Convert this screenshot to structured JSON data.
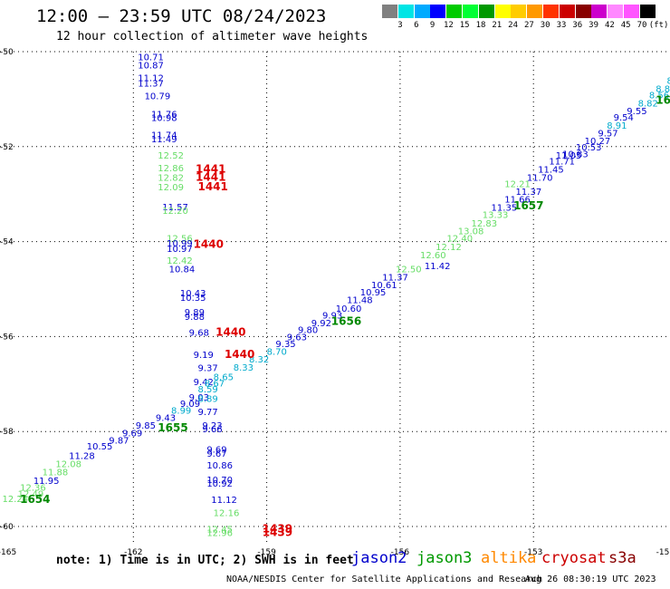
{
  "header": {
    "title": "12:00 — 23:59 UTC 08/24/2023",
    "subtitle": "12 hour collection of altimeter wave heights"
  },
  "colorbar": {
    "colors": [
      "#808080",
      "#00e5e5",
      "#00aaff",
      "#0000ff",
      "#00cc00",
      "#00ff33",
      "#009900",
      "#ffff00",
      "#ffcc00",
      "#ff9900",
      "#ff3300",
      "#cc0000",
      "#880000",
      "#cc00cc",
      "#ff88ff",
      "#ff55ff",
      "#000000"
    ],
    "labels": [
      "3",
      "6",
      "9",
      "12",
      "15",
      "18",
      "21",
      "24",
      "27",
      "30",
      "33",
      "36",
      "39",
      "42",
      "45",
      "70",
      "(ft)"
    ]
  },
  "footer": {
    "note": "note: 1) Time is in UTC; 2) SWH is in feet",
    "credit": "NOAA/NESDIS Center for Satellite Applications and Research",
    "timestamp": "Aug 26 08:30:19 UTC 2023"
  },
  "legend": [
    {
      "name": "jason2",
      "color": "#0000cc"
    },
    {
      "name": "jason3",
      "color": "#009900"
    },
    {
      "name": "altika",
      "color": "#ff8800"
    },
    {
      "name": "cryosat",
      "color": "#cc0000"
    },
    {
      "name": "s3a",
      "color": "#880000"
    }
  ],
  "map": {
    "lon_ticks": [
      "-165",
      "-162",
      "-159",
      "-156",
      "-153",
      "-15"
    ],
    "lat_ticks": [
      "-50",
      "-52",
      "-54",
      "-56",
      "-58",
      "-60"
    ],
    "lon_range": [
      -165,
      -150
    ],
    "lat_range": [
      -60.2,
      -50
    ],
    "colors": {
      "blue": "#0000cc",
      "light_green": "#66dd66",
      "cyan": "#00aacc",
      "red": "#dd0000",
      "dark_green": "#008800"
    },
    "swh_labels": [
      {
        "text": "10.71",
        "lon": -161.9,
        "lat": -50.18,
        "c": "blue"
      },
      {
        "text": "10.87",
        "lon": -161.9,
        "lat": -50.35,
        "c": "blue"
      },
      {
        "text": "11.12",
        "lon": -161.9,
        "lat": -50.62,
        "c": "blue"
      },
      {
        "text": "11.37",
        "lon": -161.9,
        "lat": -50.73,
        "c": "blue"
      },
      {
        "text": "10.79",
        "lon": -161.75,
        "lat": -51.0,
        "c": "blue"
      },
      {
        "text": "11.76",
        "lon": -161.6,
        "lat": -51.38,
        "c": "blue"
      },
      {
        "text": "10.98",
        "lon": -161.6,
        "lat": -51.46,
        "c": "blue"
      },
      {
        "text": "11.74",
        "lon": -161.6,
        "lat": -51.82,
        "c": "blue"
      },
      {
        "text": "11.49",
        "lon": -161.6,
        "lat": -51.91,
        "c": "blue"
      },
      {
        "text": "12.52",
        "lon": -161.45,
        "lat": -52.25,
        "c": "light_green"
      },
      {
        "text": "12.86",
        "lon": -161.45,
        "lat": -52.52,
        "c": "light_green"
      },
      {
        "text": "12.82",
        "lon": -161.45,
        "lat": -52.72,
        "c": "light_green"
      },
      {
        "text": "12.09",
        "lon": -161.45,
        "lat": -52.92,
        "c": "light_green"
      },
      {
        "text": "11.57",
        "lon": -161.35,
        "lat": -53.34,
        "c": "blue"
      },
      {
        "text": "12.20",
        "lon": -161.35,
        "lat": -53.42,
        "c": "light_green"
      },
      {
        "text": "12.56",
        "lon": -161.25,
        "lat": -54.0,
        "c": "light_green"
      },
      {
        "text": "10.99",
        "lon": -161.25,
        "lat": -54.1,
        "c": "blue"
      },
      {
        "text": "10.97",
        "lon": -161.25,
        "lat": -54.22,
        "c": "blue"
      },
      {
        "text": "12.42",
        "lon": -161.25,
        "lat": -54.47,
        "c": "light_green"
      },
      {
        "text": "10.84",
        "lon": -161.2,
        "lat": -54.65,
        "c": "blue"
      },
      {
        "text": "10.43",
        "lon": -160.95,
        "lat": -55.15,
        "c": "blue"
      },
      {
        "text": "10.35",
        "lon": -160.95,
        "lat": -55.25,
        "c": "blue"
      },
      {
        "text": "9.89",
        "lon": -160.85,
        "lat": -55.55,
        "c": "blue"
      },
      {
        "text": "9.88",
        "lon": -160.85,
        "lat": -55.65,
        "c": "blue"
      },
      {
        "text": "9.68",
        "lon": -160.75,
        "lat": -55.98,
        "c": "blue"
      },
      {
        "text": "9.19",
        "lon": -160.65,
        "lat": -56.45,
        "c": "blue"
      },
      {
        "text": "9.37",
        "lon": -160.55,
        "lat": -56.73,
        "c": "blue"
      },
      {
        "text": "9.42",
        "lon": -160.65,
        "lat": -57.02,
        "c": "blue"
      },
      {
        "text": "8.59",
        "lon": -160.55,
        "lat": -57.18,
        "c": "cyan"
      },
      {
        "text": "9.03",
        "lon": -160.75,
        "lat": -57.35,
        "c": "blue"
      },
      {
        "text": "8.89",
        "lon": -160.55,
        "lat": -57.38,
        "c": "cyan"
      },
      {
        "text": "9.77",
        "lon": -160.55,
        "lat": -57.65,
        "c": "blue"
      },
      {
        "text": "9.09",
        "lon": -160.95,
        "lat": -57.48,
        "c": "blue"
      },
      {
        "text": "8.99",
        "lon": -161.15,
        "lat": -57.62,
        "c": "cyan"
      },
      {
        "text": "9.43",
        "lon": -161.5,
        "lat": -57.78,
        "c": "blue"
      },
      {
        "text": "9.23",
        "lon": -160.45,
        "lat": -57.94,
        "c": "blue"
      },
      {
        "text": "9.66",
        "lon": -160.45,
        "lat": -58.02,
        "c": "blue"
      },
      {
        "text": "9.85",
        "lon": -161.95,
        "lat": -57.94,
        "c": "blue"
      },
      {
        "text": "9.69",
        "lon": -162.25,
        "lat": -58.1,
        "c": "blue"
      },
      {
        "text": "9.87",
        "lon": -162.55,
        "lat": -58.25,
        "c": "blue"
      },
      {
        "text": "10.55",
        "lon": -163.05,
        "lat": -58.38,
        "c": "blue"
      },
      {
        "text": "11.28",
        "lon": -163.45,
        "lat": -58.58,
        "c": "blue"
      },
      {
        "text": "12.08",
        "lon": -163.75,
        "lat": -58.75,
        "c": "light_green"
      },
      {
        "text": "11.88",
        "lon": -164.05,
        "lat": -58.92,
        "c": "light_green"
      },
      {
        "text": "11.95",
        "lon": -164.25,
        "lat": -59.1,
        "c": "blue"
      },
      {
        "text": "12.36",
        "lon": -164.55,
        "lat": -59.25,
        "c": "light_green"
      },
      {
        "text": "12.49",
        "lon": -164.6,
        "lat": -59.38,
        "c": "light_green"
      },
      {
        "text": "12.24",
        "lon": -164.95,
        "lat": -59.48,
        "c": "light_green"
      },
      {
        "text": "9.69",
        "lon": -160.35,
        "lat": -58.44,
        "c": "blue"
      },
      {
        "text": "9.67",
        "lon": -160.35,
        "lat": -58.53,
        "c": "blue"
      },
      {
        "text": "10.86",
        "lon": -160.35,
        "lat": -58.78,
        "c": "blue"
      },
      {
        "text": "10.70",
        "lon": -160.35,
        "lat": -59.08,
        "c": "blue"
      },
      {
        "text": "10.92",
        "lon": -160.35,
        "lat": -59.16,
        "c": "blue"
      },
      {
        "text": "11.12",
        "lon": -160.25,
        "lat": -59.5,
        "c": "blue"
      },
      {
        "text": "12.16",
        "lon": -160.2,
        "lat": -59.78,
        "c": "light_green"
      },
      {
        "text": "12.45",
        "lon": -160.35,
        "lat": -60.12,
        "c": "light_green"
      },
      {
        "text": "12.96",
        "lon": -160.35,
        "lat": -60.2,
        "c": "light_green"
      },
      {
        "text": "8.32",
        "lon": -159.4,
        "lat": -56.55,
        "c": "cyan"
      },
      {
        "text": "8.33",
        "lon": -159.75,
        "lat": -56.72,
        "c": "cyan"
      },
      {
        "text": "8.65",
        "lon": -160.2,
        "lat": -56.92,
        "c": "cyan"
      },
      {
        "text": "8.67",
        "lon": -160.4,
        "lat": -57.05,
        "c": "cyan"
      },
      {
        "text": "8.70",
        "lon": -159.0,
        "lat": -56.38,
        "c": "cyan"
      },
      {
        "text": "9.35",
        "lon": -158.8,
        "lat": -56.22,
        "c": "blue"
      },
      {
        "text": "9.63",
        "lon": -158.55,
        "lat": -56.08,
        "c": "blue"
      },
      {
        "text": "9.80",
        "lon": -158.3,
        "lat": -55.93,
        "c": "blue"
      },
      {
        "text": "9.92",
        "lon": -158.0,
        "lat": -55.78,
        "c": "blue"
      },
      {
        "text": "9.93",
        "lon": -157.75,
        "lat": -55.62,
        "c": "blue"
      },
      {
        "text": "10.60",
        "lon": -157.45,
        "lat": -55.48,
        "c": "blue"
      },
      {
        "text": "11.48",
        "lon": -157.2,
        "lat": -55.3,
        "c": "blue"
      },
      {
        "text": "10.95",
        "lon": -156.9,
        "lat": -55.13,
        "c": "blue"
      },
      {
        "text": "10.61",
        "lon": -156.65,
        "lat": -54.98,
        "c": "blue"
      },
      {
        "text": "11.37",
        "lon": -156.4,
        "lat": -54.82,
        "c": "blue"
      },
      {
        "text": "12.50",
        "lon": -156.1,
        "lat": -54.65,
        "c": "light_green"
      },
      {
        "text": "11.42",
        "lon": -155.45,
        "lat": -54.58,
        "c": "blue"
      },
      {
        "text": "12.60",
        "lon": -155.55,
        "lat": -54.35,
        "c": "light_green"
      },
      {
        "text": "12.12",
        "lon": -155.2,
        "lat": -54.18,
        "c": "light_green"
      },
      {
        "text": "12.40",
        "lon": -154.95,
        "lat": -54.0,
        "c": "light_green"
      },
      {
        "text": "13.08",
        "lon": -154.7,
        "lat": -53.85,
        "c": "light_green"
      },
      {
        "text": "12.83",
        "lon": -154.4,
        "lat": -53.68,
        "c": "light_green"
      },
      {
        "text": "13.33",
        "lon": -154.15,
        "lat": -53.5,
        "c": "light_green"
      },
      {
        "text": "11.35",
        "lon": -153.95,
        "lat": -53.35,
        "c": "blue"
      },
      {
        "text": "11.66",
        "lon": -153.65,
        "lat": -53.18,
        "c": "blue"
      },
      {
        "text": "11.37",
        "lon": -153.4,
        "lat": -53.02,
        "c": "blue"
      },
      {
        "text": "12.21",
        "lon": -153.65,
        "lat": -52.85,
        "c": "light_green"
      },
      {
        "text": "11.70",
        "lon": -153.15,
        "lat": -52.72,
        "c": "blue"
      },
      {
        "text": "11.45",
        "lon": -152.9,
        "lat": -52.55,
        "c": "blue"
      },
      {
        "text": "11.71",
        "lon": -152.65,
        "lat": -52.38,
        "c": "blue"
      },
      {
        "text": "11.05",
        "lon": -152.5,
        "lat": -52.25,
        "c": "blue"
      },
      {
        "text": "10.83",
        "lon": -152.35,
        "lat": -52.22,
        "c": "blue"
      },
      {
        "text": "10.53",
        "lon": -152.05,
        "lat": -52.08,
        "c": "blue"
      },
      {
        "text": "10.27",
        "lon": -151.85,
        "lat": -51.95,
        "c": "blue"
      },
      {
        "text": "9.57",
        "lon": -151.55,
        "lat": -51.78,
        "c": "blue"
      },
      {
        "text": "8.91",
        "lon": -151.35,
        "lat": -51.62,
        "c": "cyan"
      },
      {
        "text": "9.54",
        "lon": -151.2,
        "lat": -51.45,
        "c": "blue"
      },
      {
        "text": "9.55",
        "lon": -150.9,
        "lat": -51.32,
        "c": "blue"
      },
      {
        "text": "8.82",
        "lon": -150.65,
        "lat": -51.15,
        "c": "cyan"
      },
      {
        "text": "8.56",
        "lon": -150.4,
        "lat": -50.98,
        "c": "cyan"
      },
      {
        "text": "8.88",
        "lon": -150.25,
        "lat": -50.85,
        "c": "cyan"
      },
      {
        "text": "8.91",
        "lon": -150.0,
        "lat": -50.68,
        "c": "cyan"
      },
      {
        "text": "8.90",
        "lon": -149.7,
        "lat": -50.5,
        "c": "cyan"
      },
      {
        "text": "8.7",
        "lon": -149.5,
        "lat": -50.3,
        "c": "cyan"
      },
      {
        "text": "9",
        "lon": -149.4,
        "lat": -50.12,
        "c": "cyan"
      }
    ],
    "time_labels": [
      {
        "text": "1441",
        "lon": -160.6,
        "lat": -52.55,
        "c": "red"
      },
      {
        "text": "1441",
        "lon": -160.6,
        "lat": -52.72,
        "c": "red"
      },
      {
        "text": "1441",
        "lon": -160.55,
        "lat": -52.92,
        "c": "red"
      },
      {
        "text": "1440",
        "lon": -160.65,
        "lat": -54.13,
        "c": "red"
      },
      {
        "text": "1440",
        "lon": -160.15,
        "lat": -55.98,
        "c": "red"
      },
      {
        "text": "1440",
        "lon": -159.95,
        "lat": -56.45,
        "c": "red"
      },
      {
        "text": "1439",
        "lon": -159.1,
        "lat": -60.12,
        "c": "red"
      },
      {
        "text": "1439",
        "lon": -159.1,
        "lat": -60.2,
        "c": "red"
      },
      {
        "text": "1654",
        "lon": -164.55,
        "lat": -59.5,
        "c": "dark_green"
      },
      {
        "text": "1655",
        "lon": -161.45,
        "lat": -58.0,
        "c": "dark_green"
      },
      {
        "text": "1656",
        "lon": -157.55,
        "lat": -55.75,
        "c": "dark_green"
      },
      {
        "text": "1657",
        "lon": -153.45,
        "lat": -53.32,
        "c": "dark_green"
      },
      {
        "text": "165",
        "lon": -150.25,
        "lat": -51.1,
        "c": "dark_green"
      }
    ]
  }
}
